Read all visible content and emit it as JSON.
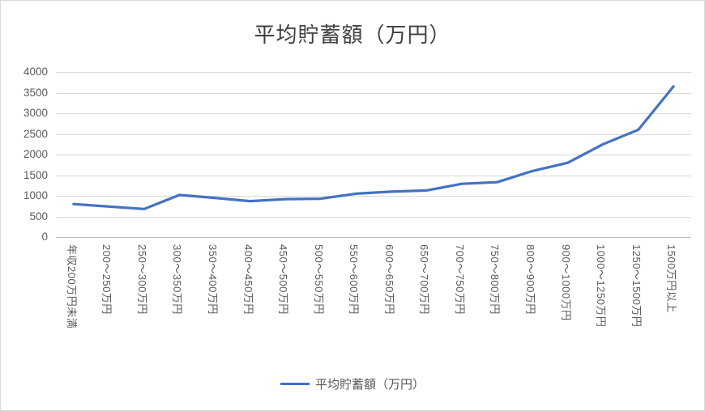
{
  "chart_data": {
    "type": "line",
    "title": "平均貯蓄額（万円）",
    "legend": "平均貯蓄額（万円）",
    "legend_position": "bottom",
    "grid": true,
    "categories": [
      "年収200万円未満",
      "200～250万円",
      "250～300万円",
      "300～350万円",
      "350～400万円",
      "400～450万円",
      "450～500万円",
      "500～550万円",
      "550～600万円",
      "600～650万円",
      "650～700万円",
      "700～750万円",
      "750～800万円",
      "800～900万円",
      "900～1000万円",
      "1000～1250万円",
      "1250～1500万円",
      "1500万円以上"
    ],
    "values": [
      800,
      740,
      680,
      1020,
      950,
      870,
      920,
      930,
      1050,
      1100,
      1130,
      1290,
      1330,
      1600,
      1800,
      2250,
      2600,
      3650
    ],
    "ylim": [
      0,
      4000
    ],
    "ytick_step": 500,
    "xlabel": "",
    "ylabel": "",
    "line_color": "#4472C4",
    "axis_text_color": "#595959",
    "title_color": "#404040",
    "gridline_color": "#d9d9d9",
    "axis_line_color": "#bfbfbf"
  }
}
